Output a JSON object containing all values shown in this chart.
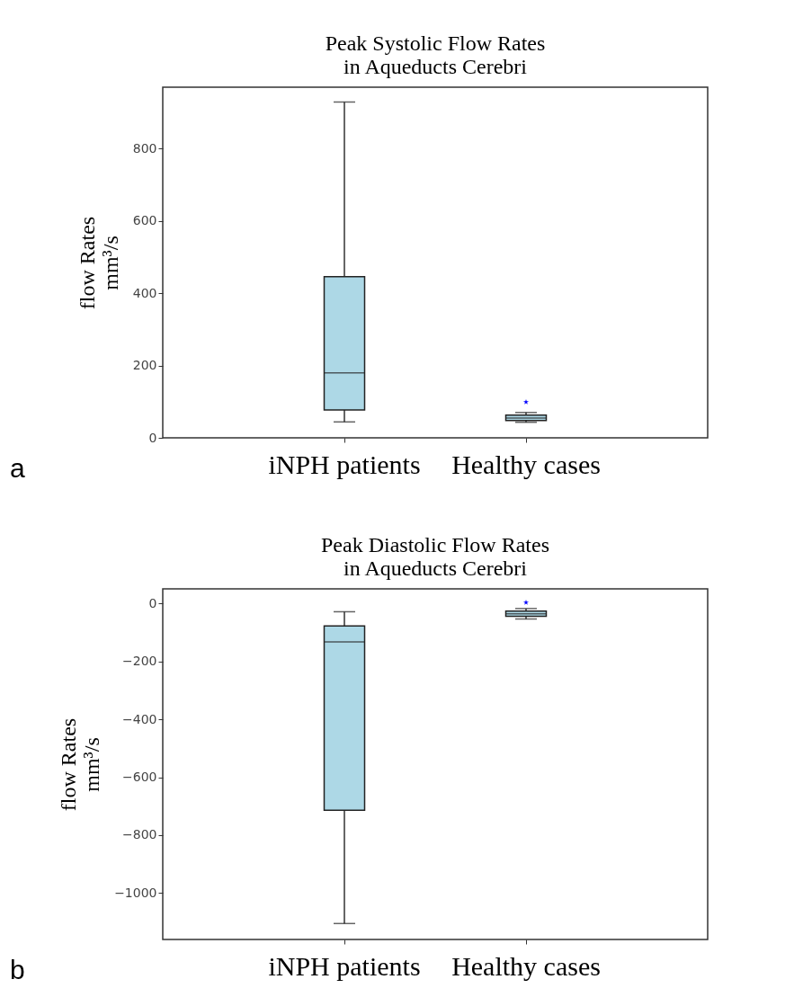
{
  "chart_data": [
    {
      "type": "box",
      "title": "Peak Systolic Flow Rates\nin Aqueducts Cerebri",
      "ylabel": "flow Rates\nmm³/s",
      "categories": [
        "iNPH patients",
        "Healthy cases"
      ],
      "color": "#add8e6",
      "marker": "star",
      "grid": false,
      "ylim": [
        0,
        970
      ],
      "yticks": [
        0,
        200,
        400,
        600,
        800
      ],
      "annotations": [
        "a"
      ],
      "boxes": [
        {
          "low": 44,
          "q1": 77,
          "median": 180,
          "q3": 446,
          "high": 929
        },
        {
          "low": 43,
          "q1": 48,
          "median": 55,
          "q3": 63,
          "high": 70,
          "outliers": [
            99
          ]
        }
      ]
    },
    {
      "type": "box",
      "title": "Peak Diastolic Flow Rates\nin Aqueducts Cerebri",
      "ylabel": "flow Rates\nmm³/s",
      "categories": [
        "iNPH patients",
        "Healthy cases"
      ],
      "color": "#add8e6",
      "marker": "star",
      "grid": false,
      "ylim": [
        -1160,
        50
      ],
      "yticks": [
        -1000,
        -800,
        -600,
        -400,
        -200,
        0
      ],
      "annotations": [
        "b"
      ],
      "boxes": [
        {
          "low": -1105,
          "q1": -714,
          "median": -133,
          "q3": -78,
          "high": -29
        },
        {
          "low": -54,
          "q1": -45,
          "median": -36,
          "q3": -27,
          "high": -18,
          "outliers": [
            3
          ]
        }
      ]
    }
  ]
}
